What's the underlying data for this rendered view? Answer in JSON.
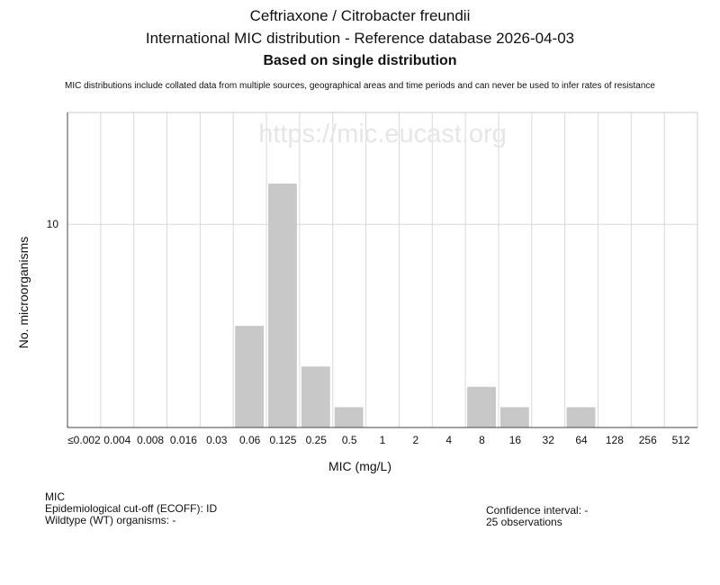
{
  "header": {
    "title": "Ceftriaxone / Citrobacter freundii",
    "subtitle": "International MIC distribution - Reference database 2026-04-03",
    "basis": "Based on single distribution",
    "disclaimer": "MIC distributions include collated data from multiple sources, geographical areas and time periods and can never be used to infer rates of resistance"
  },
  "watermark": "https://mic.eucast.org",
  "chart_data": {
    "type": "bar",
    "categories": [
      "≤0.002",
      "0.004",
      "0.008",
      "0.016",
      "0.03",
      "0.06",
      "0.125",
      "0.25",
      "0.5",
      "1",
      "2",
      "4",
      "8",
      "16",
      "32",
      "64",
      "128",
      "256",
      "512"
    ],
    "values": [
      0,
      0,
      0,
      0,
      0,
      5,
      12,
      3,
      1,
      0,
      0,
      0,
      2,
      1,
      0,
      1,
      0,
      0,
      0
    ],
    "xlabel": "MIC (mg/L)",
    "ylabel": "No. microorganisms",
    "ylim": [
      0,
      15.5
    ],
    "yticks": [
      10
    ],
    "grid": true,
    "bar_color": "#c8c8c8"
  },
  "footer": {
    "left": {
      "line1": "MIC",
      "line2": "Epidemiological cut-off (ECOFF): ID",
      "line3": "Wildtype (WT) organisms:  -"
    },
    "right": {
      "line1": "Confidence interval: -",
      "line2": "25 observations"
    }
  }
}
